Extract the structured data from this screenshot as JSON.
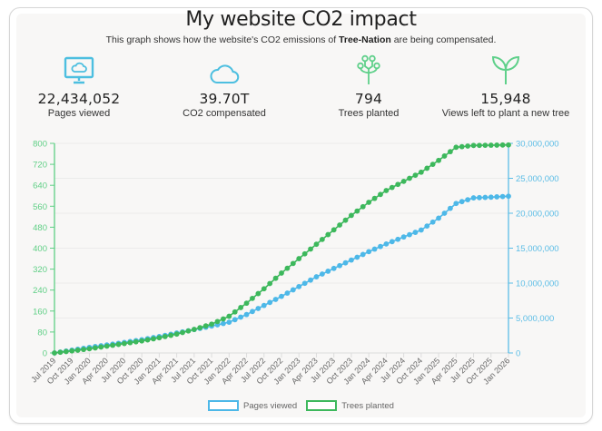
{
  "header": {
    "title": "My website CO2 impact",
    "subtitle_prefix": "This graph shows how the website's CO2 emissions of ",
    "subtitle_brand": "Tree-Nation",
    "subtitle_suffix": " are being compensated."
  },
  "stats": [
    {
      "icon": "monitor-cloud-icon",
      "value": "22,434,052",
      "label": "Pages viewed",
      "color": "#4dbfe0"
    },
    {
      "icon": "cloud-icon",
      "value": "39.70T",
      "label": "CO2 compensated",
      "color": "#4dbfe0"
    },
    {
      "icon": "tree-branch-icon",
      "value": "794",
      "label": "Trees planted",
      "color": "#5fd08a"
    },
    {
      "icon": "sprout-icon",
      "value": "15,948",
      "label": "Views left to plant a new tree",
      "color": "#5fd08a"
    }
  ],
  "colors": {
    "pages": "#4db8e8",
    "trees": "#3db85c",
    "left_axis": "#5fcf85",
    "right_axis": "#5bbde6",
    "grid": "#ebebeb"
  },
  "chart_data": {
    "type": "line",
    "title": "",
    "xlabel": "",
    "ylabel_left": "Trees planted",
    "ylabel_right": "Pages viewed",
    "grid": true,
    "legend_position": "bottom",
    "x_tick_labels": [
      "Jul 2019",
      "Oct 2019",
      "Jan 2020",
      "Apr 2020",
      "Jul 2020",
      "Oct 2020",
      "Jan 2021",
      "Apr 2021",
      "Jul 2021",
      "Oct 2021",
      "Jan 2022",
      "Apr 2022",
      "Jul 2022",
      "Oct 2022",
      "Jan 2023",
      "Apr 2023",
      "Jul 2023",
      "Oct 2023",
      "Jan 2024",
      "Apr 2024",
      "Jul 2024",
      "Oct 2024",
      "Jan 2025",
      "Apr 2025",
      "Jul 2025",
      "Oct 2025",
      "Jan 2026"
    ],
    "y_left": {
      "range": [
        0,
        800
      ],
      "ticks": [
        "0",
        "80",
        "160",
        "240",
        "320",
        "400",
        "480",
        "560",
        "640",
        "720",
        "800"
      ]
    },
    "y_right": {
      "range": [
        0,
        30000000
      ],
      "ticks": [
        "0",
        "5,000,000",
        "10,000,000",
        "15,000,000",
        "20,000,000",
        "25,000,000",
        "30,000,000"
      ]
    },
    "series": [
      {
        "name": "Pages viewed",
        "axis": "right",
        "quarterly_values": [
          0,
          400000,
          800000,
          1150000,
          1500000,
          1900000,
          2350000,
          2850000,
          3350000,
          3850000,
          4400000,
          5500000,
          6800000,
          8100000,
          9500000,
          10900000,
          12100000,
          13300000,
          14500000,
          15600000,
          16600000,
          17600000,
          19300000,
          21400000,
          22200000,
          22300000,
          22434052
        ]
      },
      {
        "name": "Trees planted",
        "axis": "left",
        "quarterly_values": [
          0,
          8,
          16,
          26,
          36,
          46,
          58,
          72,
          90,
          110,
          140,
          190,
          245,
          305,
          360,
          415,
          470,
          525,
          575,
          620,
          655,
          690,
          735,
          785,
          792,
          793,
          794
        ]
      }
    ]
  },
  "legend": [
    {
      "label": "Pages viewed"
    },
    {
      "label": "Trees planted"
    }
  ]
}
